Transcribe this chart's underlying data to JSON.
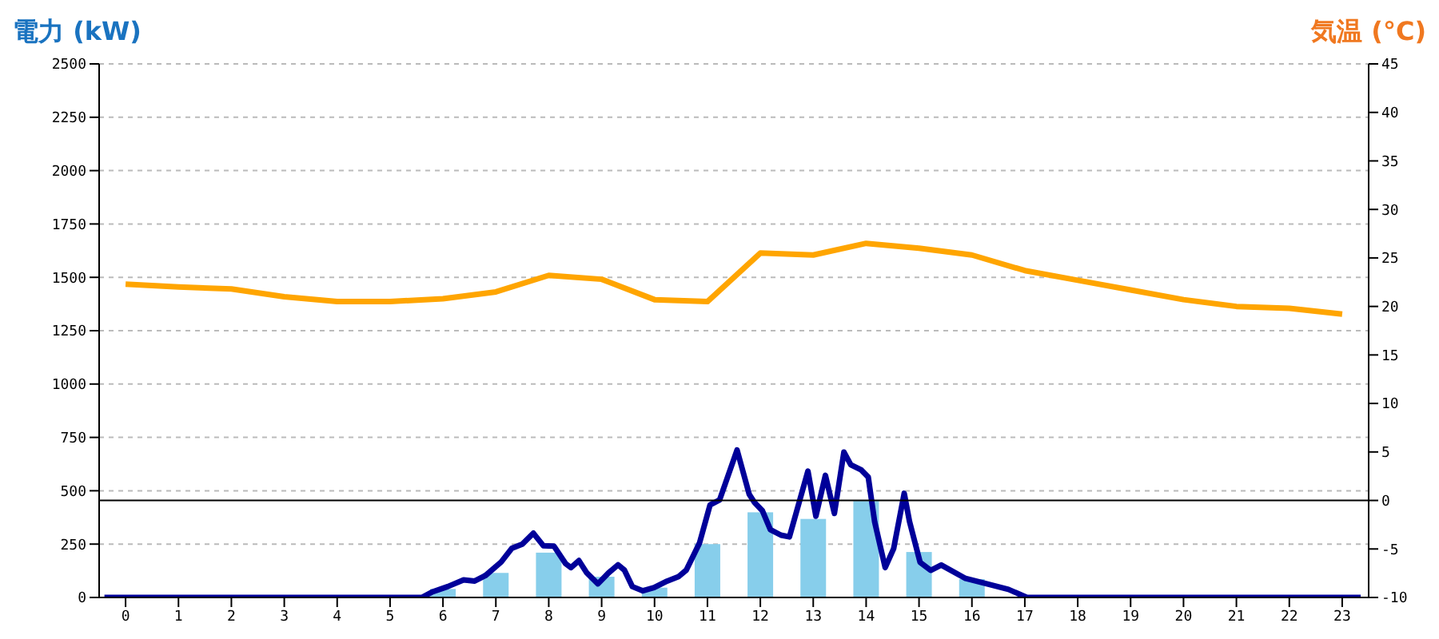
{
  "chart_data": {
    "type": "bar",
    "ylabel": "電力 (kW)",
    "y2label": "気温 (°C)",
    "x": [
      0,
      1,
      2,
      3,
      4,
      5,
      6,
      7,
      8,
      9,
      10,
      11,
      12,
      13,
      14,
      15,
      16,
      17,
      18,
      19,
      20,
      21,
      22,
      23
    ],
    "xlim": [
      -0.5,
      23.5
    ],
    "xticks": [
      0,
      1,
      2,
      3,
      4,
      5,
      6,
      7,
      8,
      9,
      10,
      11,
      12,
      13,
      14,
      15,
      16,
      17,
      18,
      19,
      20,
      21,
      22,
      23
    ],
    "series": [
      {
        "color": "#87ceeb",
        "values": [
          0,
          0,
          0,
          0,
          0,
          0,
          40,
          115,
          210,
          97,
          46,
          250,
          399,
          368,
          452,
          213,
          86,
          0,
          0,
          0,
          0,
          0,
          0,
          0
        ]
      },
      {
        "type": "line",
        "color": "#ffa500",
        "axis": "y2",
        "values": [
          22.3,
          22,
          21.8,
          21,
          20.5,
          20.5,
          20.8,
          21.5,
          23.2,
          22.8,
          20.7,
          20.5,
          25.5,
          25.3,
          26.5,
          26,
          25.3,
          23.7,
          22.7,
          21.7,
          20.7,
          20,
          19.8,
          19.2
        ]
      },
      {
        "type": "line",
        "color": "#000099",
        "x": [
          -0.4,
          5.6,
          5.79,
          6.09,
          6.39,
          6.6,
          6.8,
          7.1,
          7.3,
          7.5,
          7.71,
          7.9,
          8.1,
          8.32,
          8.42,
          8.57,
          8.72,
          8.93,
          9.13,
          9.31,
          9.43,
          9.58,
          9.78,
          9.99,
          10.24,
          10.45,
          10.6,
          10.85,
          11.05,
          11.23,
          11.56,
          11.79,
          11.89,
          12.04,
          12.19,
          12.39,
          12.55,
          12.9,
          13.05,
          13.23,
          13.4,
          13.58,
          13.71,
          13.91,
          14.04,
          14.16,
          14.36,
          14.52,
          14.72,
          14.82,
          15.02,
          15.22,
          15.42,
          15.88,
          16.28,
          16.69,
          17.04,
          23.35
        ],
        "values": [
          0,
          0,
          25,
          51,
          82,
          77,
          102,
          166,
          230,
          250,
          301,
          242,
          240,
          158,
          140,
          173,
          115,
          64,
          115,
          153,
          128,
          51,
          31,
          46,
          77,
          97,
          128,
          255,
          434,
          457,
          691,
          483,
          445,
          406,
          318,
          292,
          284,
          592,
          381,
          572,
          394,
          681,
          622,
          597,
          564,
          356,
          140,
          229,
          488,
          356,
          165,
          127,
          152,
          89,
          64,
          38,
          0,
          0
        ]
      }
    ],
    "ylim": [
      0,
      2500
    ],
    "yticks": [
      0,
      250,
      500,
      750,
      1000,
      1250,
      1500,
      1750,
      2000,
      2250,
      2500
    ],
    "y2lim": [
      -10,
      45
    ],
    "y2ticks": [
      -10,
      -5,
      0,
      5,
      10,
      15,
      20,
      25,
      30,
      35,
      40,
      45
    ],
    "ref_lines": [
      {
        "axis": "y2",
        "value": 0,
        "color": "#000000"
      }
    ],
    "grid": "y",
    "marker": "none",
    "line_style": "solid",
    "legend": false
  }
}
